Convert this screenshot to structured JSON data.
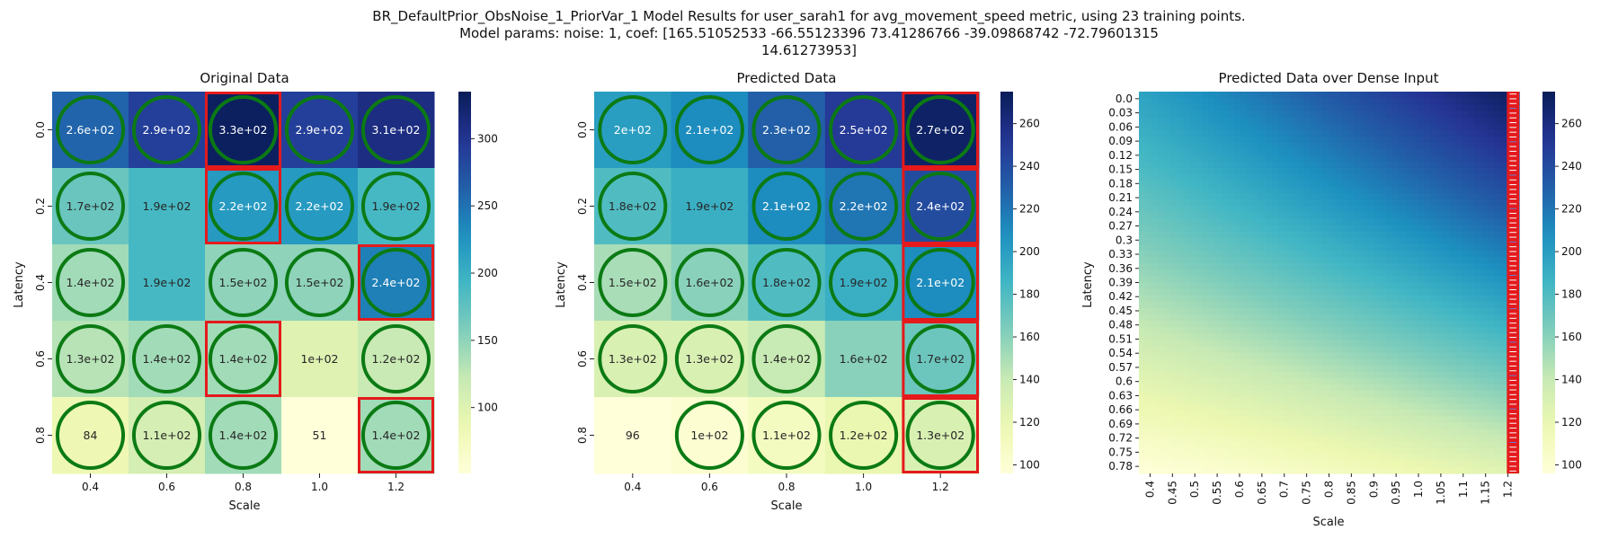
{
  "figure": {
    "title_lines": [
      "BR_DefaultPrior_ObsNoise_1_PriorVar_1 Model Results for user_sarah1 for avg_movement_speed metric, using 23 training points.",
      "Model params: noise: 1, coef: [165.51052533 -66.55123396  73.41286766 -39.09868742 -72.79601315",
      "14.61273953]"
    ]
  },
  "colors": {
    "circle": "#0b7a14",
    "highlight": "#e41a1c",
    "text_dark": "#262626",
    "text_light": "#ffffff",
    "colormap": [
      "#ffffd9",
      "#edf8b1",
      "#c7e9b4",
      "#7fcdbb",
      "#41b6c4",
      "#1d91c0",
      "#225ea8",
      "#253494",
      "#081d58"
    ]
  },
  "chart_data": [
    {
      "type": "heatmap",
      "title": "Original Data",
      "xlabel": "Scale",
      "ylabel": "Latency",
      "x": [
        "0.4",
        "0.6",
        "0.8",
        "1.0",
        "1.2"
      ],
      "y": [
        "0.0",
        "0.2",
        "0.4",
        "0.6",
        "0.8"
      ],
      "values": [
        [
          260,
          290,
          330,
          290,
          310
        ],
        [
          170,
          190,
          220,
          220,
          190
        ],
        [
          140,
          190,
          150,
          150,
          240
        ],
        [
          130,
          140,
          140,
          100,
          120
        ],
        [
          84,
          110,
          140,
          51,
          140
        ]
      ],
      "cell_labels": [
        [
          "2.6e+02",
          "2.9e+02",
          "3.3e+02",
          "2.9e+02",
          "3.1e+02"
        ],
        [
          "1.7e+02",
          "1.9e+02",
          "2.2e+02",
          "2.2e+02",
          "1.9e+02"
        ],
        [
          "1.4e+02",
          "1.9e+02",
          "1.5e+02",
          "1.5e+02",
          "2.4e+02"
        ],
        [
          "1.3e+02",
          "1.4e+02",
          "1.4e+02",
          "1e+02",
          "1.2e+02"
        ],
        [
          "84",
          "1.1e+02",
          "1.4e+02",
          "51",
          "1.4e+02"
        ]
      ],
      "circled": [
        [
          1,
          1,
          1,
          1,
          1
        ],
        [
          1,
          0,
          1,
          1,
          1
        ],
        [
          1,
          0,
          1,
          1,
          1
        ],
        [
          1,
          1,
          1,
          0,
          1
        ],
        [
          1,
          1,
          1,
          0,
          1
        ]
      ],
      "highlighted": [
        [
          0,
          2
        ],
        [
          1,
          2
        ],
        [
          3,
          2
        ],
        [
          2,
          4
        ],
        [
          4,
          4
        ]
      ],
      "vmin": 51,
      "vmax": 335,
      "colorbar_ticks": [
        100,
        150,
        200,
        250,
        300
      ]
    },
    {
      "type": "heatmap",
      "title": "Predicted Data",
      "xlabel": "Scale",
      "ylabel": "Latency",
      "x": [
        "0.4",
        "0.6",
        "0.8",
        "1.0",
        "1.2"
      ],
      "y": [
        "0.0",
        "0.2",
        "0.4",
        "0.6",
        "0.8"
      ],
      "values": [
        [
          200,
          210,
          230,
          250,
          270
        ],
        [
          180,
          190,
          210,
          220,
          240
        ],
        [
          150,
          160,
          180,
          190,
          210
        ],
        [
          130,
          130,
          140,
          160,
          170
        ],
        [
          96,
          100,
          110,
          120,
          130
        ]
      ],
      "cell_labels": [
        [
          "2e+02",
          "2.1e+02",
          "2.3e+02",
          "2.5e+02",
          "2.7e+02"
        ],
        [
          "1.8e+02",
          "1.9e+02",
          "2.1e+02",
          "2.2e+02",
          "2.4e+02"
        ],
        [
          "1.5e+02",
          "1.6e+02",
          "1.8e+02",
          "1.9e+02",
          "2.1e+02"
        ],
        [
          "1.3e+02",
          "1.3e+02",
          "1.4e+02",
          "1.6e+02",
          "1.7e+02"
        ],
        [
          "96",
          "1e+02",
          "1.1e+02",
          "1.2e+02",
          "1.3e+02"
        ]
      ],
      "circled": [
        [
          1,
          1,
          1,
          1,
          1
        ],
        [
          1,
          0,
          1,
          1,
          1
        ],
        [
          1,
          1,
          1,
          1,
          1
        ],
        [
          1,
          1,
          1,
          0,
          1
        ],
        [
          0,
          1,
          1,
          1,
          1
        ]
      ],
      "highlighted": [
        [
          0,
          4
        ],
        [
          1,
          4
        ],
        [
          2,
          4
        ],
        [
          3,
          4
        ],
        [
          4,
          4
        ]
      ],
      "vmin": 96,
      "vmax": 275,
      "colorbar_ticks": [
        100,
        120,
        140,
        160,
        180,
        200,
        220,
        240,
        260
      ]
    },
    {
      "type": "heatmap",
      "title": "Predicted Data over Dense Input",
      "xlabel": "Scale",
      "ylabel": "Latency",
      "x_ticks": [
        "0.4",
        "0.45",
        "0.5",
        "0.55",
        "0.6",
        "0.65",
        "0.7",
        "0.75",
        "0.8",
        "0.85",
        "0.9",
        "0.95",
        "1.0",
        "1.05",
        "1.1",
        "1.15",
        "1.2"
      ],
      "y_ticks": [
        "0.0",
        "0.03",
        "0.06",
        "0.09",
        "0.12",
        "0.15",
        "0.18",
        "0.21",
        "0.24",
        "0.27",
        "0.3",
        "0.33",
        "0.36",
        "0.39",
        "0.42",
        "0.45",
        "0.48",
        "0.51",
        "0.54",
        "0.57",
        "0.6",
        "0.63",
        "0.66",
        "0.69",
        "0.72",
        "0.75",
        "0.78"
      ],
      "x_range": [
        0.4,
        1.2
      ],
      "y_range": [
        0.0,
        0.8
      ],
      "vmin": 96,
      "vmax": 275,
      "colorbar_ticks": [
        100,
        120,
        140,
        160,
        180,
        200,
        220,
        240,
        260
      ],
      "highlighted_column": "1.2"
    }
  ]
}
